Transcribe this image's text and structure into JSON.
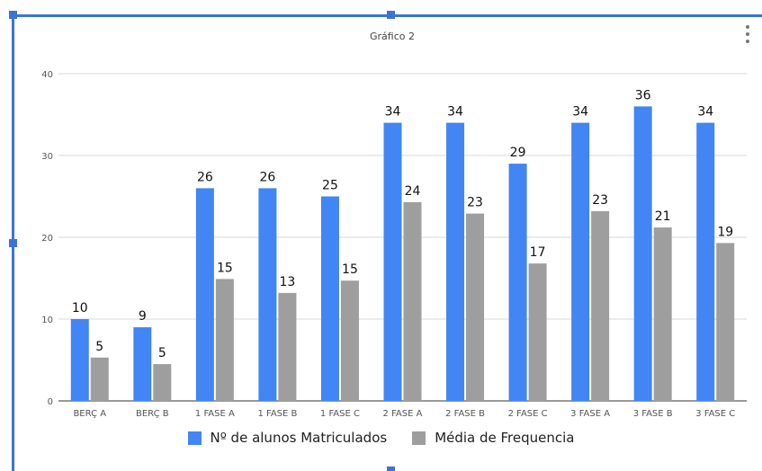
{
  "chart_data": {
    "type": "bar",
    "title": "Gráfico 2",
    "xlabel": "",
    "ylabel": "",
    "ylim": [
      0,
      40
    ],
    "yticks": [
      0,
      10,
      20,
      30,
      40
    ],
    "grid": true,
    "legend_position": "bottom",
    "categories": [
      "BERÇ  A",
      "BERÇ B",
      "1 FASE A",
      "1 FASE B",
      "1 FASE C",
      "2 FASE A",
      "2 FASE B",
      "2 FASE C",
      "3 FASE A",
      "3 FASE B",
      "3 FASE C"
    ],
    "series": [
      {
        "name": "Nº de alunos Matriculados",
        "color": "#4285f4",
        "values": [
          10,
          9,
          26,
          26,
          25,
          34,
          34,
          29,
          34,
          36,
          34
        ],
        "labels": [
          "10",
          "9",
          "26",
          "26",
          "25",
          "34",
          "34",
          "29",
          "34",
          "36",
          "34"
        ]
      },
      {
        "name": "Média de Frequencia",
        "color": "#9e9e9e",
        "values": [
          5.3,
          4.5,
          14.9,
          13.2,
          14.7,
          24.3,
          22.9,
          16.8,
          23.2,
          21.2,
          19.3
        ],
        "labels": [
          "5",
          "5",
          "15",
          "13",
          "15",
          "24",
          "23",
          "17",
          "23",
          "21",
          "19"
        ]
      }
    ]
  },
  "ui": {
    "selection_color": "#3a74d8",
    "menu_icon": "kebab-menu-icon"
  }
}
